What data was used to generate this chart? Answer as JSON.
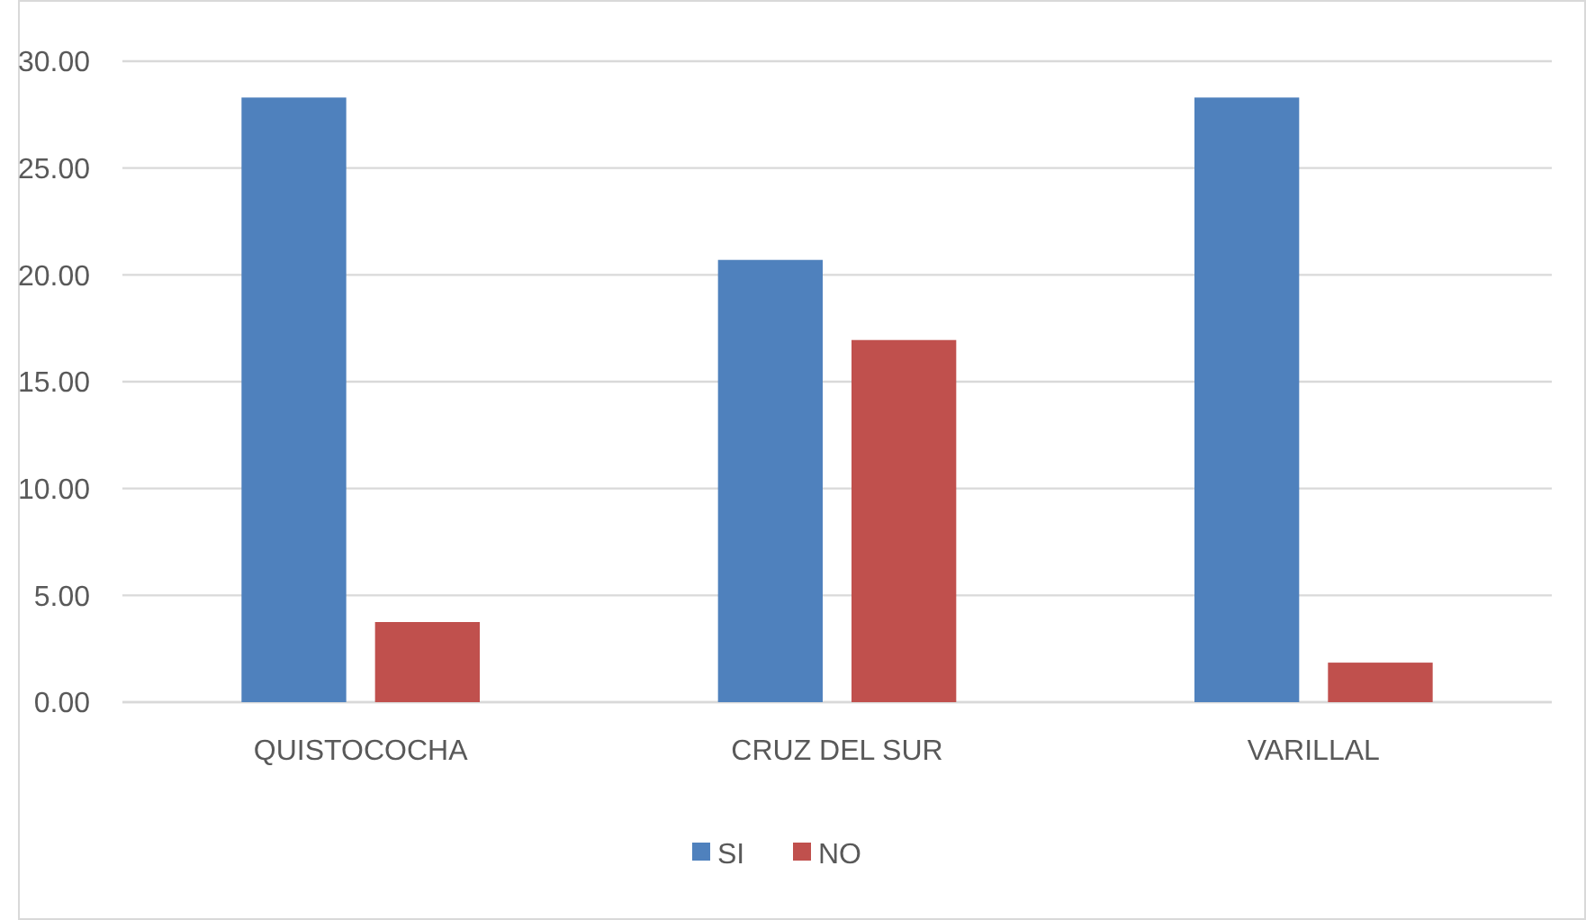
{
  "chart_data": {
    "type": "bar",
    "categories": [
      "QUISTOCOCHA",
      "CRUZ DEL SUR",
      "VARILLAL"
    ],
    "series": [
      {
        "name": "SI",
        "color": "#4f81bd",
        "values": [
          28.3,
          20.7,
          28.3
        ]
      },
      {
        "name": "NO",
        "color": "#c0504d",
        "values": [
          3.75,
          16.95,
          1.85
        ]
      }
    ],
    "ylim": [
      0,
      30
    ],
    "yticks": [
      {
        "value": 0,
        "label": "0.00"
      },
      {
        "value": 5,
        "label": "5.00"
      },
      {
        "value": 10,
        "label": "10.00"
      },
      {
        "value": 15,
        "label": "15.00"
      },
      {
        "value": 20,
        "label": "20.00"
      },
      {
        "value": 25,
        "label": "25.00"
      },
      {
        "value": 30,
        "label": "30.00"
      }
    ],
    "grid": "y",
    "legend": "bottom"
  }
}
